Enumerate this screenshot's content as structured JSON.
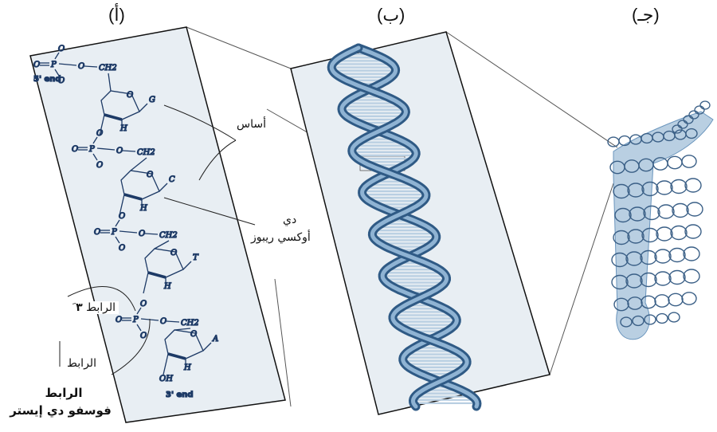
{
  "panels": {
    "a": "(أ)",
    "b": "(ب)",
    "c": "(جـ)"
  },
  "labels": {
    "base": "أساس",
    "deoxyribose_line1": "دي",
    "deoxyribose_line2": "أوكسي ريبوز",
    "bond_3_prefix": "الرابط",
    "bond_3_number": "۳",
    "bond_3_suffix": "َ",
    "bond_5": "الرابط",
    "phosphodiester_line1": "الرابط",
    "phosphodiester_line2": "فوسفو دي إيستر"
  },
  "chem": {
    "end5": "5' end",
    "end3": "3' end",
    "bases": [
      "G",
      "C",
      "T",
      "A"
    ]
  },
  "colors": {
    "panel_fill": "#e8eef3",
    "helix_blue": "#6a95bd",
    "helix_light": "#b9cfe2",
    "helix_dark": "#2f5a85",
    "chem_ink": "#1d3a66",
    "connector": "#555555"
  }
}
